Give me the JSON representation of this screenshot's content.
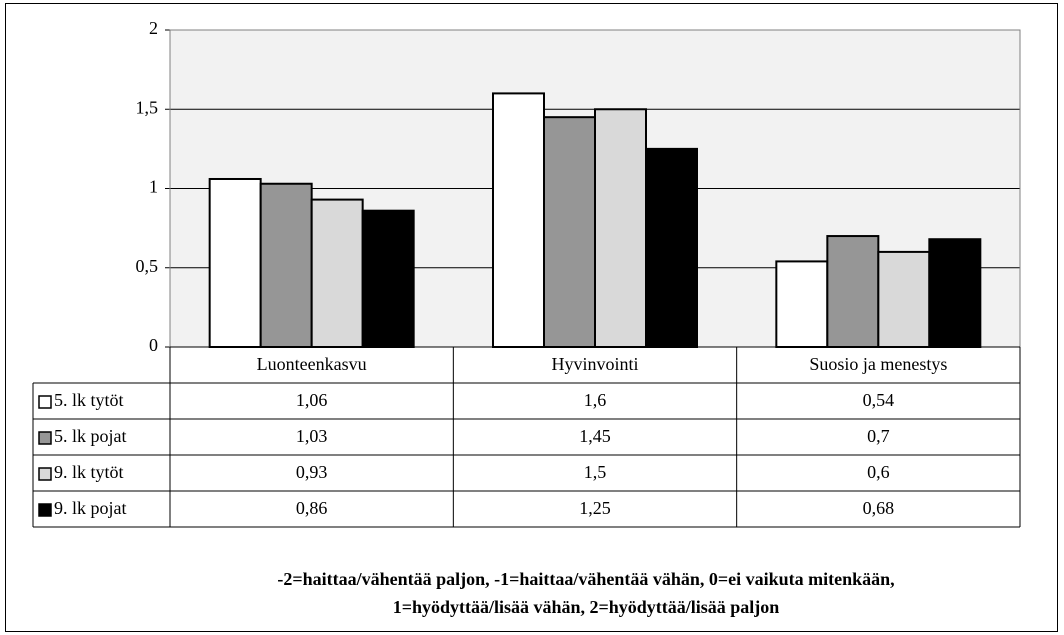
{
  "chart_data": {
    "type": "bar",
    "categories": [
      "Luonteenkasvu",
      "Hyvinvointi",
      "Suosio ja menestys"
    ],
    "series": [
      {
        "name": "5. lk tytöt",
        "color": "#ffffff",
        "values": [
          1.06,
          1.6,
          0.54
        ],
        "value_labels": [
          "1,06",
          "1,6",
          "0,54"
        ]
      },
      {
        "name": "5. lk pojat",
        "color": "#969696",
        "values": [
          1.03,
          1.45,
          0.7
        ],
        "value_labels": [
          "1,03",
          "1,45",
          "0,7"
        ]
      },
      {
        "name": "9. lk tytöt",
        "color": "#d9d9d9",
        "values": [
          0.93,
          1.5,
          0.6
        ],
        "value_labels": [
          "0,93",
          "1,5",
          "0,6"
        ]
      },
      {
        "name": "9. lk pojat",
        "color": "#000000",
        "values": [
          0.86,
          1.25,
          0.68
        ],
        "value_labels": [
          "0,86",
          "1,25",
          "0,68"
        ]
      }
    ],
    "ylim": [
      0,
      2
    ],
    "yticks": [
      0,
      {
        "value": 0.5,
        "label": "0,5"
      },
      1,
      {
        "value": 1.5,
        "label": "1,5"
      },
      2
    ],
    "grid": true,
    "caption": [
      "-2=haittaa/vähentää paljon, -1=haittaa/vähentää vähän, 0=ei vaikuta mitenkään,",
      "1=hyödyttää/lisää vähän, 2=hyödyttää/lisää paljon"
    ]
  }
}
